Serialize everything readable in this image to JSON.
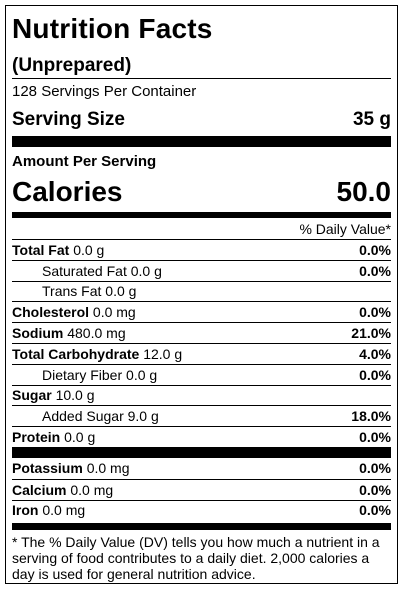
{
  "label": {
    "title": "Nutrition Facts",
    "subtitle": "(Unprepared)",
    "servings_per_container": "128 Servings Per Container",
    "serving_size_label": "Serving Size",
    "serving_size_value": "35 g",
    "amount_per_serving": "Amount Per Serving",
    "calories_label": "Calories",
    "calories_value": "50.0",
    "daily_value_header": "% Daily Value*"
  },
  "nutrients": {
    "total_fat": {
      "name": "Total Fat",
      "amount": "0.0 g",
      "dv": "0.0%"
    },
    "saturated_fat": {
      "name": "Saturated Fat",
      "amount": "0.0 g",
      "dv": "0.0%"
    },
    "trans_fat": {
      "name": "Trans Fat",
      "amount": "0.0 g"
    },
    "cholesterol": {
      "name": "Cholesterol",
      "amount": "0.0 mg",
      "dv": "0.0%"
    },
    "sodium": {
      "name": "Sodium",
      "amount": "480.0 mg",
      "dv": "21.0%"
    },
    "total_carbohydrate": {
      "name": "Total Carbohydrate",
      "amount": "12.0 g",
      "dv": "4.0%"
    },
    "dietary_fiber": {
      "name": "Dietary Fiber",
      "amount": "0.0 g",
      "dv": "0.0%"
    },
    "sugar": {
      "name": "Sugar",
      "amount": "10.0 g"
    },
    "added_sugar": {
      "name": "Added Sugar",
      "amount": "9.0 g",
      "dv": "18.0%"
    },
    "protein": {
      "name": "Protein",
      "amount": "0.0 g",
      "dv": "0.0%"
    },
    "potassium": {
      "name": "Potassium",
      "amount": "0.0 mg",
      "dv": "0.0%"
    },
    "calcium": {
      "name": "Calcium",
      "amount": "0.0 mg",
      "dv": "0.0%"
    },
    "iron": {
      "name": "Iron",
      "amount": "0.0 mg",
      "dv": "0.0%"
    }
  },
  "footnote": "* The % Daily Value (DV) tells you how much a nutrient in a serving of food contributes to a daily diet. 2,000 calories a day is used for general nutrition advice."
}
